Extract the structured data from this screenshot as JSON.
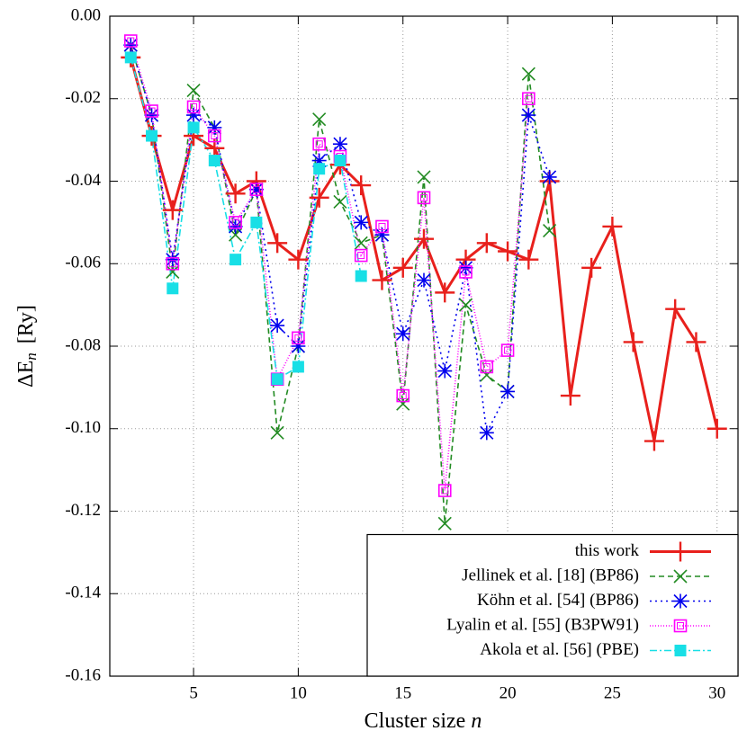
{
  "chart_data": {
    "type": "line",
    "xlabel": {
      "text": "Cluster size",
      "variable": "n"
    },
    "ylabel": {
      "symbol": "ΔE",
      "subscript": "n",
      "unit": "[Ry]"
    },
    "xlim": [
      1,
      31
    ],
    "ylim": [
      -0.16,
      0
    ],
    "xticks": [
      5,
      10,
      15,
      20,
      25,
      30
    ],
    "yticks": [
      {
        "value": 0,
        "label": "0.00"
      },
      {
        "value": -0.02,
        "label": "-0.02"
      },
      {
        "value": -0.04,
        "label": "-0.04"
      },
      {
        "value": -0.06,
        "label": "-0.06"
      },
      {
        "value": -0.08,
        "label": "-0.08"
      },
      {
        "value": -0.1,
        "label": "-0.10"
      },
      {
        "value": -0.12,
        "label": "-0.12"
      },
      {
        "value": -0.14,
        "label": "-0.14"
      },
      {
        "value": -0.16,
        "label": "-0.16"
      }
    ],
    "grid": true,
    "legend": "bottom-right",
    "series": [
      {
        "name": "this work",
        "color": "#e8201c",
        "marker": "plus",
        "dash": "none",
        "x": [
          2,
          3,
          4,
          5,
          6,
          7,
          8,
          9,
          10,
          11,
          12,
          13,
          14,
          15,
          16,
          17,
          18,
          19,
          20,
          21,
          22,
          23,
          24,
          25,
          26,
          27,
          28,
          29,
          30
        ],
        "values": [
          -0.01,
          -0.029,
          -0.047,
          -0.029,
          -0.032,
          -0.043,
          -0.04,
          -0.055,
          -0.059,
          -0.044,
          -0.036,
          -0.041,
          -0.064,
          -0.061,
          -0.054,
          -0.067,
          -0.059,
          -0.055,
          -0.057,
          -0.059,
          -0.04,
          -0.092,
          -0.061,
          -0.051,
          -0.079,
          -0.103,
          -0.071,
          -0.079,
          -0.1
        ]
      },
      {
        "name": "Jellinek et al. [18] (BP86)",
        "color": "#228b22",
        "marker": "cross",
        "dash": "6,4",
        "x": [
          2,
          3,
          4,
          5,
          6,
          7,
          8,
          9,
          10,
          11,
          12,
          13,
          14,
          15,
          16,
          17,
          18,
          19,
          20,
          21,
          22
        ],
        "values": [
          -0.007,
          -0.024,
          -0.062,
          -0.018,
          -0.027,
          -0.053,
          -0.042,
          -0.101,
          -0.08,
          -0.025,
          -0.045,
          -0.055,
          -0.053,
          -0.094,
          -0.039,
          -0.123,
          -0.07,
          -0.087,
          -0.091,
          -0.014,
          -0.052
        ]
      },
      {
        "name": "Köhn et al. [54] (BP86)",
        "color": "#0000ee",
        "marker": "star",
        "dash": "2,4",
        "x": [
          2,
          3,
          4,
          5,
          6,
          7,
          8,
          9,
          10,
          11,
          12,
          13,
          14,
          15,
          16,
          17,
          18,
          19,
          20,
          21,
          22
        ],
        "values": [
          -0.007,
          -0.024,
          -0.059,
          -0.024,
          -0.027,
          -0.051,
          -0.042,
          -0.075,
          -0.08,
          -0.035,
          -0.031,
          -0.05,
          -0.053,
          -0.077,
          -0.064,
          -0.086,
          -0.061,
          -0.101,
          -0.091,
          -0.024,
          -0.039
        ]
      },
      {
        "name": "Lyalin et al. [55] (B3PW91)",
        "color": "#ff00ff",
        "marker": "square",
        "dash": "1,2",
        "x": [
          2,
          3,
          4,
          5,
          6,
          7,
          8,
          9,
          10,
          11,
          12,
          13,
          14,
          15,
          16,
          17,
          18,
          19,
          20,
          21
        ],
        "values": [
          -0.006,
          -0.023,
          -0.06,
          -0.022,
          -0.029,
          -0.05,
          -0.042,
          -0.088,
          -0.078,
          -0.031,
          -0.034,
          -0.058,
          -0.051,
          -0.092,
          -0.044,
          -0.115,
          -0.062,
          -0.085,
          -0.081,
          -0.02
        ]
      },
      {
        "name": "Akola et al. [56] (PBE)",
        "color": "#18dfe6",
        "marker": "filled-square",
        "dash": "8,3,2,3",
        "x": [
          2,
          3,
          4,
          5,
          6,
          7,
          8,
          9,
          10,
          11,
          12,
          13
        ],
        "values": [
          -0.01,
          -0.029,
          -0.066,
          -0.027,
          -0.035,
          -0.059,
          -0.05,
          -0.088,
          -0.085,
          -0.037,
          -0.035,
          -0.063
        ]
      }
    ]
  }
}
